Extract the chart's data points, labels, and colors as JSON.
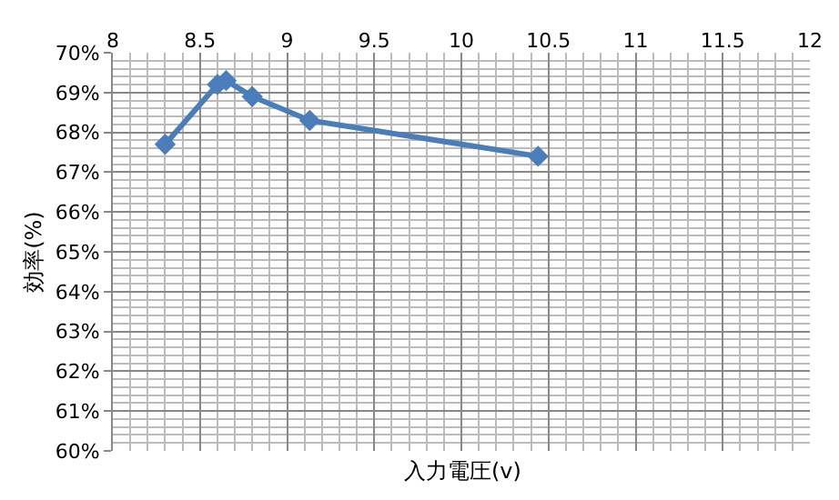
{
  "chart_data": {
    "type": "line",
    "xlabel": "入力電圧(v)",
    "ylabel": "効率(%)",
    "x": [
      8.3,
      8.6,
      8.65,
      8.8,
      9.13,
      10.44
    ],
    "series": [
      {
        "color": "#4a7ebb",
        "values": [
          67.7,
          69.2,
          69.3,
          68.9,
          68.3,
          67.4
        ]
      }
    ],
    "xlim": [
      8,
      12
    ],
    "xticks": [
      8,
      8.5,
      9,
      9.5,
      10,
      10.5,
      11,
      11.5,
      12
    ],
    "ylim": [
      60,
      70
    ],
    "yticks": [
      {
        "value": 60,
        "label": "60%"
      },
      {
        "value": 61,
        "label": "61%"
      },
      {
        "value": 62,
        "label": "62%"
      },
      {
        "value": 63,
        "label": "63%"
      },
      {
        "value": 64,
        "label": "64%"
      },
      {
        "value": 65,
        "label": "65%"
      },
      {
        "value": 66,
        "label": "66%"
      },
      {
        "value": 67,
        "label": "67%"
      },
      {
        "value": 68,
        "label": "68%"
      },
      {
        "value": 69,
        "label": "69%"
      },
      {
        "value": 70,
        "label": "70%"
      }
    ],
    "grid": true,
    "legend": false,
    "marker": "diamond",
    "line_style": "solid"
  }
}
